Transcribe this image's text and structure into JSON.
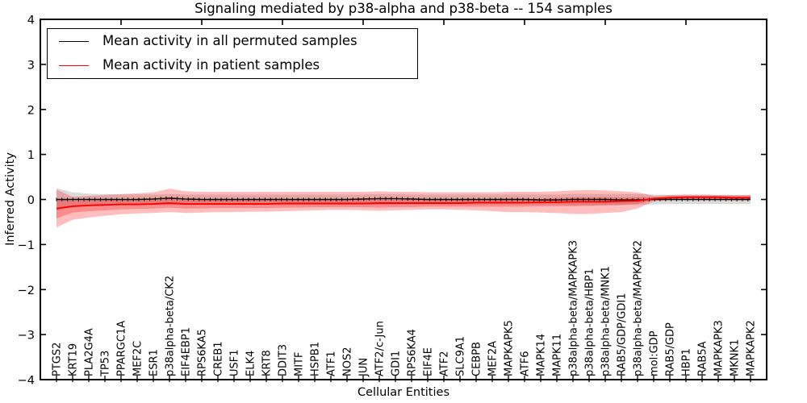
{
  "colors": {
    "permuted_line": "#000000",
    "patient_line": "#ff0000",
    "permuted_band": "rgba(125,125,125,0.28)",
    "patient_band_outer": "rgba(255,35,35,0.30)",
    "patient_band_inner": "rgba(235,25,25,0.30)",
    "axis": "#000000"
  },
  "chart_data": {
    "type": "line",
    "title": "Signaling mediated by p38-alpha and p38-beta -- 154 samples",
    "xlabel": "Cellular Entities",
    "ylabel": "Inferred Activity",
    "ylim": [
      -4,
      4
    ],
    "yticks": [
      4,
      3,
      2,
      1,
      0,
      -1,
      -2,
      -3,
      -4
    ],
    "ytick_labels": [
      "4",
      "3",
      "2",
      "1",
      "0",
      "−1",
      "−2",
      "−3",
      "−4"
    ],
    "grid": false,
    "legend_position": "upper left",
    "categories": [
      "PTGS2",
      "KRT19",
      "PLA2G4A",
      "TP53",
      "PPARGC1A",
      "MEF2C",
      "ESR1",
      "p38alpha-beta/CK2",
      "EIF4EBP1",
      "RPS6KA5",
      "CREB1",
      "USF1",
      "ELK4",
      "KRT8",
      "DDIT3",
      "MITF",
      "HSPB1",
      "ATF1",
      "NOS2",
      "JUN",
      "ATF2/c-Jun",
      "GDI1",
      "RPS6KA4",
      "EIF4E",
      "ATF2",
      "SLC9A1",
      "CEBPB",
      "MEF2A",
      "MAPKAPK5",
      "ATF6",
      "MAPK14",
      "MAPK11",
      "p38alpha-beta/MAPKAPK3",
      "p38alpha-beta/HBP1",
      "p38alpha-beta/MNK1",
      "RAB5/GDP/GDI1",
      "p38alpha-beta/MAPKAPK2",
      "mol:GDP",
      "RAB5/GDP",
      "HBP1",
      "RAB5A",
      "MAPKAPK3",
      "MKNK1",
      "MAPKAPK2"
    ],
    "series": [
      {
        "name": "Mean activity in all permuted samples",
        "color": "#000000",
        "values": [
          0.0,
          0.0,
          0.0,
          0.0,
          0.0,
          0.0,
          0.01,
          0.03,
          0.01,
          0.0,
          0.0,
          0.0,
          0.0,
          0.0,
          0.0,
          0.0,
          0.0,
          0.0,
          0.0,
          0.01,
          0.02,
          0.02,
          0.01,
          0.0,
          0.0,
          0.0,
          0.0,
          0.0,
          0.0,
          0.0,
          -0.01,
          -0.01,
          0.0,
          0.0,
          0.0,
          -0.01,
          -0.01,
          0.0,
          0.0,
          0.0,
          0.0,
          0.0,
          0.0,
          0.0
        ],
        "band_hi": [
          0.25,
          0.16,
          0.13,
          0.12,
          0.11,
          0.11,
          0.11,
          0.12,
          0.11,
          0.11,
          0.11,
          0.11,
          0.11,
          0.11,
          0.11,
          0.11,
          0.11,
          0.11,
          0.11,
          0.11,
          0.12,
          0.12,
          0.11,
          0.11,
          0.11,
          0.11,
          0.11,
          0.11,
          0.11,
          0.11,
          0.11,
          0.11,
          0.12,
          0.12,
          0.12,
          0.12,
          0.12,
          0.11,
          0.1,
          0.1,
          0.1,
          0.1,
          0.1,
          0.1
        ],
        "band_lo": [
          -0.25,
          -0.16,
          -0.13,
          -0.12,
          -0.11,
          -0.11,
          -0.11,
          -0.12,
          -0.11,
          -0.11,
          -0.11,
          -0.11,
          -0.11,
          -0.11,
          -0.11,
          -0.11,
          -0.11,
          -0.11,
          -0.11,
          -0.11,
          -0.12,
          -0.12,
          -0.11,
          -0.11,
          -0.11,
          -0.11,
          -0.11,
          -0.11,
          -0.11,
          -0.11,
          -0.11,
          -0.11,
          -0.12,
          -0.12,
          -0.12,
          -0.12,
          -0.12,
          -0.11,
          -0.1,
          -0.1,
          -0.1,
          -0.1,
          -0.1,
          -0.1
        ]
      },
      {
        "name": "Mean activity in patient samples",
        "color": "#ff0000",
        "values": [
          -0.2,
          -0.15,
          -0.13,
          -0.12,
          -0.11,
          -0.11,
          -0.1,
          -0.08,
          -0.1,
          -0.1,
          -0.1,
          -0.1,
          -0.1,
          -0.1,
          -0.09,
          -0.09,
          -0.09,
          -0.09,
          -0.09,
          -0.09,
          -0.08,
          -0.08,
          -0.08,
          -0.08,
          -0.08,
          -0.08,
          -0.07,
          -0.07,
          -0.07,
          -0.07,
          -0.06,
          -0.06,
          -0.05,
          -0.05,
          -0.05,
          -0.04,
          -0.03,
          0.02,
          0.04,
          0.05,
          0.05,
          0.05,
          0.04,
          0.04
        ],
        "outer_band_hi": [
          0.22,
          0.06,
          0.08,
          0.1,
          0.12,
          0.14,
          0.16,
          0.24,
          0.18,
          0.17,
          0.17,
          0.17,
          0.17,
          0.17,
          0.17,
          0.17,
          0.17,
          0.17,
          0.17,
          0.17,
          0.18,
          0.17,
          0.17,
          0.16,
          0.16,
          0.16,
          0.16,
          0.16,
          0.17,
          0.17,
          0.17,
          0.18,
          0.2,
          0.21,
          0.2,
          0.18,
          0.16,
          0.08,
          0.1,
          0.11,
          0.11,
          0.1,
          0.1,
          0.1
        ],
        "outer_band_lo": [
          -0.62,
          -0.45,
          -0.4,
          -0.36,
          -0.33,
          -0.31,
          -0.3,
          -0.28,
          -0.3,
          -0.29,
          -0.28,
          -0.28,
          -0.27,
          -0.27,
          -0.26,
          -0.25,
          -0.24,
          -0.23,
          -0.23,
          -0.24,
          -0.25,
          -0.24,
          -0.23,
          -0.22,
          -0.22,
          -0.23,
          -0.24,
          -0.26,
          -0.28,
          -0.28,
          -0.29,
          -0.3,
          -0.32,
          -0.32,
          -0.3,
          -0.28,
          -0.2,
          -0.04,
          -0.01,
          -0.01,
          -0.01,
          -0.01,
          -0.02,
          -0.02
        ],
        "inner_band_hi": [
          0.02,
          -0.03,
          -0.02,
          -0.01,
          0.0,
          0.0,
          0.01,
          0.03,
          0.01,
          0.01,
          0.01,
          0.01,
          0.01,
          0.01,
          0.01,
          0.01,
          0.01,
          0.01,
          0.01,
          0.01,
          0.02,
          0.02,
          0.02,
          0.01,
          0.01,
          0.01,
          0.01,
          0.01,
          0.02,
          0.02,
          0.02,
          0.03,
          0.05,
          0.05,
          0.05,
          0.04,
          0.05,
          0.05,
          0.07,
          0.08,
          0.08,
          0.08,
          0.07,
          0.07
        ],
        "inner_band_lo": [
          -0.42,
          -0.29,
          -0.26,
          -0.24,
          -0.22,
          -0.21,
          -0.2,
          -0.18,
          -0.2,
          -0.2,
          -0.19,
          -0.19,
          -0.19,
          -0.19,
          -0.18,
          -0.18,
          -0.17,
          -0.17,
          -0.17,
          -0.17,
          -0.18,
          -0.17,
          -0.17,
          -0.16,
          -0.16,
          -0.16,
          -0.16,
          -0.16,
          -0.16,
          -0.16,
          -0.15,
          -0.15,
          -0.15,
          -0.14,
          -0.13,
          -0.12,
          -0.1,
          -0.01,
          0.01,
          0.02,
          0.02,
          0.02,
          0.01,
          0.01
        ]
      }
    ]
  }
}
